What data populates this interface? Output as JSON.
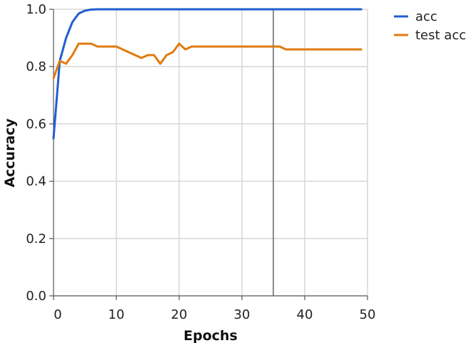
{
  "chart_data": {
    "type": "line",
    "title": "",
    "xlabel": "Epochs",
    "ylabel": "Accuracy",
    "xlim": [
      0,
      50
    ],
    "ylim": [
      0,
      1
    ],
    "x_ticks": [
      0,
      10,
      20,
      30,
      40,
      50
    ],
    "y_ticks": [
      0.0,
      0.2,
      0.4,
      0.6,
      0.8,
      1.0
    ],
    "x_tick_labels": [
      "0",
      "10",
      "20",
      "30",
      "40",
      "50"
    ],
    "y_tick_labels": [
      "0.0",
      "0.2",
      "0.4",
      "0.6",
      "0.8",
      "1.0"
    ],
    "grid": true,
    "legend_position": "top-right",
    "vertical_marker_x": 35,
    "series": [
      {
        "name": "acc",
        "color": "#1f5fcf",
        "x": [
          0,
          1,
          2,
          3,
          4,
          5,
          6,
          7,
          8,
          9,
          10,
          11,
          12,
          13,
          14,
          15,
          16,
          17,
          18,
          19,
          20,
          21,
          22,
          23,
          24,
          25,
          26,
          27,
          28,
          29,
          30,
          31,
          32,
          33,
          34,
          35,
          36,
          37,
          38,
          39,
          40,
          41,
          42,
          43,
          44,
          45,
          46,
          47,
          48,
          49
        ],
        "y": [
          0.55,
          0.82,
          0.9,
          0.955,
          0.985,
          0.995,
          0.999,
          1,
          1,
          1,
          1,
          1,
          1,
          1,
          1,
          1,
          1,
          1,
          1,
          1,
          1,
          1,
          1,
          1,
          1,
          1,
          1,
          1,
          1,
          1,
          1,
          1,
          1,
          1,
          1,
          1,
          1,
          1,
          1,
          1,
          1,
          1,
          1,
          1,
          1,
          1,
          1,
          1,
          1,
          1
        ]
      },
      {
        "name": "test acc",
        "color": "#e07b10",
        "x": [
          0,
          1,
          2,
          3,
          4,
          5,
          6,
          7,
          8,
          9,
          10,
          11,
          12,
          13,
          14,
          15,
          16,
          17,
          18,
          19,
          20,
          21,
          22,
          23,
          24,
          25,
          26,
          27,
          28,
          29,
          30,
          31,
          32,
          33,
          34,
          35,
          36,
          37,
          38,
          39,
          40,
          41,
          42,
          43,
          44,
          45,
          46,
          47,
          48,
          49
        ],
        "y": [
          0.76,
          0.82,
          0.81,
          0.84,
          0.88,
          0.88,
          0.88,
          0.87,
          0.87,
          0.87,
          0.87,
          0.86,
          0.85,
          0.84,
          0.83,
          0.84,
          0.84,
          0.81,
          0.84,
          0.85,
          0.88,
          0.86,
          0.87,
          0.87,
          0.87,
          0.87,
          0.87,
          0.87,
          0.87,
          0.87,
          0.87,
          0.87,
          0.87,
          0.87,
          0.87,
          0.87,
          0.87,
          0.86,
          0.86,
          0.86,
          0.86,
          0.86,
          0.86,
          0.86,
          0.86,
          0.86,
          0.86,
          0.86,
          0.86,
          0.86
        ]
      }
    ]
  }
}
